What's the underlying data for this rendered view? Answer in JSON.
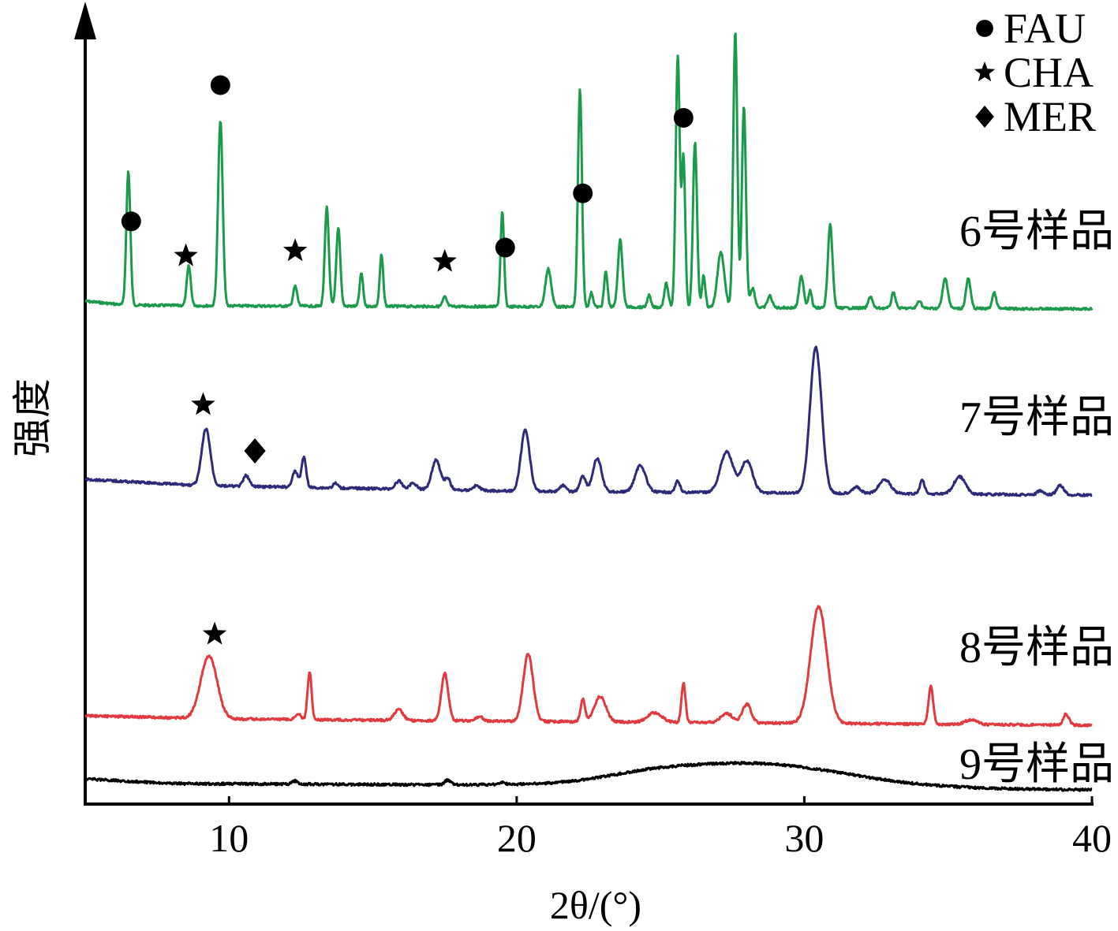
{
  "chart_data": {
    "type": "line",
    "title": "",
    "xlabel": "2θ/(°)",
    "ylabel": "强度",
    "xlim": [
      5,
      40
    ],
    "xticks": [
      10,
      20,
      30,
      40
    ],
    "yticks": [],
    "grid": false,
    "legend": {
      "placement": "top-right",
      "entries": [
        {
          "marker": "circle",
          "label": "FAU"
        },
        {
          "marker": "star",
          "label": "CHA"
        },
        {
          "marker": "diamond",
          "label": "MER"
        }
      ]
    },
    "series": [
      {
        "name": "6号样品",
        "color": "#1a9a4a",
        "baseline": 392,
        "peaks": [
          {
            "x": 6.5,
            "h": 170,
            "w": 0.07
          },
          {
            "x": 8.6,
            "h": 50,
            "w": 0.07
          },
          {
            "x": 9.7,
            "h": 235,
            "w": 0.08
          },
          {
            "x": 12.3,
            "h": 25,
            "w": 0.07
          },
          {
            "x": 13.4,
            "h": 125,
            "w": 0.07
          },
          {
            "x": 13.8,
            "h": 100,
            "w": 0.07
          },
          {
            "x": 14.6,
            "h": 42,
            "w": 0.06
          },
          {
            "x": 15.3,
            "h": 65,
            "w": 0.06
          },
          {
            "x": 17.5,
            "h": 12,
            "w": 0.07
          },
          {
            "x": 19.5,
            "h": 120,
            "w": 0.06
          },
          {
            "x": 21.1,
            "h": 48,
            "w": 0.1
          },
          {
            "x": 22.2,
            "h": 275,
            "w": 0.07
          },
          {
            "x": 22.6,
            "h": 18,
            "w": 0.06
          },
          {
            "x": 23.1,
            "h": 45,
            "w": 0.06
          },
          {
            "x": 23.6,
            "h": 85,
            "w": 0.08
          },
          {
            "x": 24.6,
            "h": 15,
            "w": 0.06
          },
          {
            "x": 25.2,
            "h": 30,
            "w": 0.07
          },
          {
            "x": 25.6,
            "h": 320,
            "w": 0.07
          },
          {
            "x": 25.8,
            "h": 190,
            "w": 0.06
          },
          {
            "x": 26.2,
            "h": 210,
            "w": 0.07
          },
          {
            "x": 26.5,
            "h": 40,
            "w": 0.06
          },
          {
            "x": 27.1,
            "h": 70,
            "w": 0.12
          },
          {
            "x": 27.6,
            "h": 350,
            "w": 0.07
          },
          {
            "x": 27.9,
            "h": 255,
            "w": 0.07
          },
          {
            "x": 28.2,
            "h": 25,
            "w": 0.08
          },
          {
            "x": 28.8,
            "h": 15,
            "w": 0.08
          },
          {
            "x": 29.9,
            "h": 40,
            "w": 0.08
          },
          {
            "x": 30.2,
            "h": 22,
            "w": 0.06
          },
          {
            "x": 30.9,
            "h": 105,
            "w": 0.08
          },
          {
            "x": 32.3,
            "h": 15,
            "w": 0.07
          },
          {
            "x": 33.1,
            "h": 20,
            "w": 0.07
          },
          {
            "x": 34.0,
            "h": 10,
            "w": 0.07
          },
          {
            "x": 34.9,
            "h": 38,
            "w": 0.09
          },
          {
            "x": 35.7,
            "h": 38,
            "w": 0.08
          },
          {
            "x": 36.6,
            "h": 20,
            "w": 0.07
          }
        ],
        "trend": [
          [
            5,
            10
          ],
          [
            6.4,
            5
          ],
          [
            9.6,
            4
          ],
          [
            20,
            3
          ],
          [
            40,
            0
          ]
        ]
      },
      {
        "name": "7号样品",
        "color": "#2e2a7a",
        "baseline": 628,
        "peaks": [
          {
            "x": 9.2,
            "h": 72,
            "w": 0.15
          },
          {
            "x": 10.6,
            "h": 14,
            "w": 0.1
          },
          {
            "x": 12.3,
            "h": 20,
            "w": 0.1
          },
          {
            "x": 12.6,
            "h": 38,
            "w": 0.08
          },
          {
            "x": 13.7,
            "h": 6,
            "w": 0.08
          },
          {
            "x": 15.9,
            "h": 10,
            "w": 0.12
          },
          {
            "x": 16.4,
            "h": 8,
            "w": 0.12
          },
          {
            "x": 17.2,
            "h": 38,
            "w": 0.15
          },
          {
            "x": 17.6,
            "h": 14,
            "w": 0.1
          },
          {
            "x": 18.6,
            "h": 6,
            "w": 0.12
          },
          {
            "x": 20.3,
            "h": 78,
            "w": 0.15
          },
          {
            "x": 21.6,
            "h": 8,
            "w": 0.1
          },
          {
            "x": 22.3,
            "h": 20,
            "w": 0.1
          },
          {
            "x": 22.8,
            "h": 42,
            "w": 0.15
          },
          {
            "x": 24.3,
            "h": 34,
            "w": 0.18
          },
          {
            "x": 25.6,
            "h": 14,
            "w": 0.08
          },
          {
            "x": 27.3,
            "h": 52,
            "w": 0.22
          },
          {
            "x": 28.0,
            "h": 40,
            "w": 0.2
          },
          {
            "x": 30.4,
            "h": 185,
            "w": 0.2
          },
          {
            "x": 31.8,
            "h": 8,
            "w": 0.15
          },
          {
            "x": 32.8,
            "h": 18,
            "w": 0.2
          },
          {
            "x": 34.1,
            "h": 18,
            "w": 0.08
          },
          {
            "x": 35.4,
            "h": 22,
            "w": 0.2
          },
          {
            "x": 38.2,
            "h": 5,
            "w": 0.1
          },
          {
            "x": 38.9,
            "h": 12,
            "w": 0.12
          }
        ],
        "trend": [
          [
            5,
            20
          ],
          [
            9,
            12
          ],
          [
            20,
            5
          ],
          [
            40,
            0
          ]
        ]
      },
      {
        "name": "8号样品",
        "color": "#e0393e",
        "baseline": 920,
        "peaks": [
          {
            "x": 9.3,
            "h": 80,
            "w": 0.28
          },
          {
            "x": 12.4,
            "h": 8,
            "w": 0.08
          },
          {
            "x": 12.8,
            "h": 60,
            "w": 0.07
          },
          {
            "x": 15.9,
            "h": 14,
            "w": 0.15
          },
          {
            "x": 17.5,
            "h": 60,
            "w": 0.12
          },
          {
            "x": 18.7,
            "h": 6,
            "w": 0.12
          },
          {
            "x": 20.4,
            "h": 85,
            "w": 0.17
          },
          {
            "x": 22.3,
            "h": 28,
            "w": 0.08
          },
          {
            "x": 22.9,
            "h": 32,
            "w": 0.2
          },
          {
            "x": 24.8,
            "h": 12,
            "w": 0.25
          },
          {
            "x": 25.8,
            "h": 50,
            "w": 0.07
          },
          {
            "x": 27.3,
            "h": 12,
            "w": 0.2
          },
          {
            "x": 28.0,
            "h": 24,
            "w": 0.15
          },
          {
            "x": 30.5,
            "h": 148,
            "w": 0.28
          },
          {
            "x": 34.4,
            "h": 48,
            "w": 0.08
          },
          {
            "x": 35.8,
            "h": 6,
            "w": 0.2
          },
          {
            "x": 39.1,
            "h": 14,
            "w": 0.1
          }
        ],
        "trend": [
          [
            5,
            12
          ],
          [
            10,
            8
          ],
          [
            20,
            5
          ],
          [
            40,
            0
          ]
        ]
      },
      {
        "name": "9号样品",
        "color": "#000000",
        "baseline": 1002,
        "peaks": [
          {
            "x": 28.2,
            "h": 30,
            "w": 3.2
          },
          {
            "x": 24.5,
            "h": 6,
            "w": 1.5
          },
          {
            "x": 12.3,
            "h": 4,
            "w": 0.1
          },
          {
            "x": 17.6,
            "h": 6,
            "w": 0.1
          },
          {
            "x": 19.5,
            "h": 3,
            "w": 0.1
          }
        ],
        "trend": [
          [
            5,
            14
          ],
          [
            8,
            8
          ],
          [
            20,
            6
          ],
          [
            40,
            0
          ]
        ]
      }
    ],
    "annotations": [
      {
        "marker": "circle",
        "x": 6.6,
        "series": "6号样品"
      },
      {
        "marker": "circle",
        "x": 9.7,
        "series": "6号样品"
      },
      {
        "marker": "circle",
        "x": 19.6,
        "series": "6号样品"
      },
      {
        "marker": "circle",
        "x": 22.3,
        "series": "6号样品"
      },
      {
        "marker": "circle",
        "x": 25.8,
        "series": "6号样品"
      },
      {
        "marker": "star",
        "x": 8.5,
        "series": "6号样品"
      },
      {
        "marker": "star",
        "x": 12.3,
        "series": "6号样品"
      },
      {
        "marker": "star",
        "x": 17.5,
        "series": "6号样品"
      },
      {
        "marker": "star",
        "x": 9.1,
        "series": "7号样品"
      },
      {
        "marker": "diamond",
        "x": 10.9,
        "series": "7号样品"
      },
      {
        "marker": "star",
        "x": 9.5,
        "series": "8号样品"
      }
    ]
  }
}
